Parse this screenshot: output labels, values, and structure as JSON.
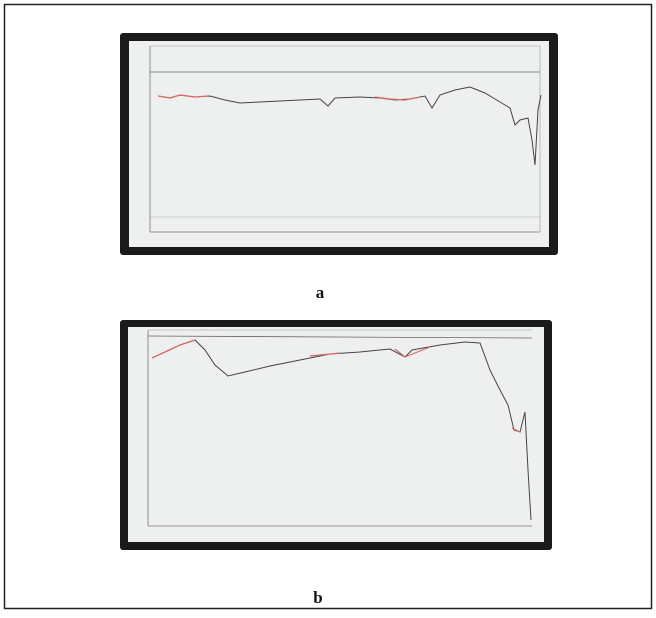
{
  "panels": [
    {
      "label": "a"
    },
    {
      "label": "b"
    }
  ]
}
